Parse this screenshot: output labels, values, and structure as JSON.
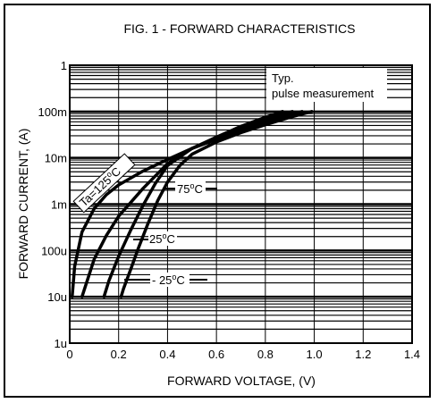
{
  "chart_data": {
    "type": "line",
    "title": "FIG. 1 -  FORWARD CHARACTERISTICS",
    "xlabel": "FORWARD  VOLTAGE, (V)",
    "ylabel": "FORWARD  CURRENT, (A)",
    "xlim": [
      0,
      1.4
    ],
    "ylim": [
      1e-06,
      1
    ],
    "y_scale": "log",
    "x_ticks": [
      {
        "v": 0,
        "label": "0"
      },
      {
        "v": 0.2,
        "label": "0.2"
      },
      {
        "v": 0.4,
        "label": "0.4"
      },
      {
        "v": 0.6,
        "label": "0.6"
      },
      {
        "v": 0.8,
        "label": "0.8"
      },
      {
        "v": 1.0,
        "label": "1.0"
      },
      {
        "v": 1.2,
        "label": "1.2"
      },
      {
        "v": 1.4,
        "label": "1.4"
      }
    ],
    "y_ticks": [
      {
        "v": 1,
        "label": "1"
      },
      {
        "v": 0.1,
        "label": "100m"
      },
      {
        "v": 0.01,
        "label": "10m"
      },
      {
        "v": 0.001,
        "label": "1m"
      },
      {
        "v": 0.0001,
        "label": "100u"
      },
      {
        "v": 1e-05,
        "label": "10u"
      },
      {
        "v": 1e-06,
        "label": "1u"
      }
    ],
    "grid": true,
    "annotation": {
      "line1": "Typ.",
      "line2": "pulse measurement"
    },
    "series": [
      {
        "name": "Ta=125°C",
        "label_main": "Ta=125",
        "label_sup": "o",
        "label_unit": "C",
        "x": [
          0.01,
          0.02,
          0.05,
          0.1,
          0.15,
          0.2,
          0.3,
          0.4,
          0.5,
          0.6,
          0.7,
          0.8,
          0.87
        ],
        "y": [
          1e-05,
          4.5e-05,
          0.00025,
          0.0008,
          0.0016,
          0.0026,
          0.0052,
          0.0092,
          0.016,
          0.028,
          0.048,
          0.075,
          0.1
        ]
      },
      {
        "name": "75°C",
        "label_main": "75",
        "label_sup": "o",
        "label_unit": "C",
        "x": [
          0.05,
          0.1,
          0.15,
          0.2,
          0.3,
          0.4,
          0.5,
          0.6,
          0.7,
          0.8,
          0.91
        ],
        "y": [
          1e-05,
          6.5e-05,
          0.00021,
          0.00055,
          0.0022,
          0.0075,
          0.016,
          0.027,
          0.044,
          0.068,
          0.1
        ]
      },
      {
        "name": "25°C",
        "label_main": "25",
        "label_sup": "o",
        "label_unit": "C",
        "x": [
          0.14,
          0.16,
          0.2,
          0.25,
          0.3,
          0.35,
          0.4,
          0.5,
          0.6,
          0.7,
          0.8,
          0.95
        ],
        "y": [
          1e-05,
          2.2e-05,
          7.5e-05,
          0.00028,
          0.00095,
          0.0028,
          0.0068,
          0.016,
          0.025,
          0.04,
          0.06,
          0.1
        ]
      },
      {
        "name": "- 25°C",
        "label_main": "- 25",
        "label_sup": "o",
        "label_unit": "C",
        "x": [
          0.21,
          0.22,
          0.25,
          0.28,
          0.32,
          0.36,
          0.4,
          0.45,
          0.5,
          0.6,
          0.7,
          0.8,
          0.9,
          0.99
        ],
        "y": [
          1e-05,
          1.5e-05,
          4e-05,
          0.00011,
          0.00038,
          0.0012,
          0.003,
          0.0068,
          0.012,
          0.022,
          0.035,
          0.052,
          0.075,
          0.1
        ]
      }
    ]
  }
}
